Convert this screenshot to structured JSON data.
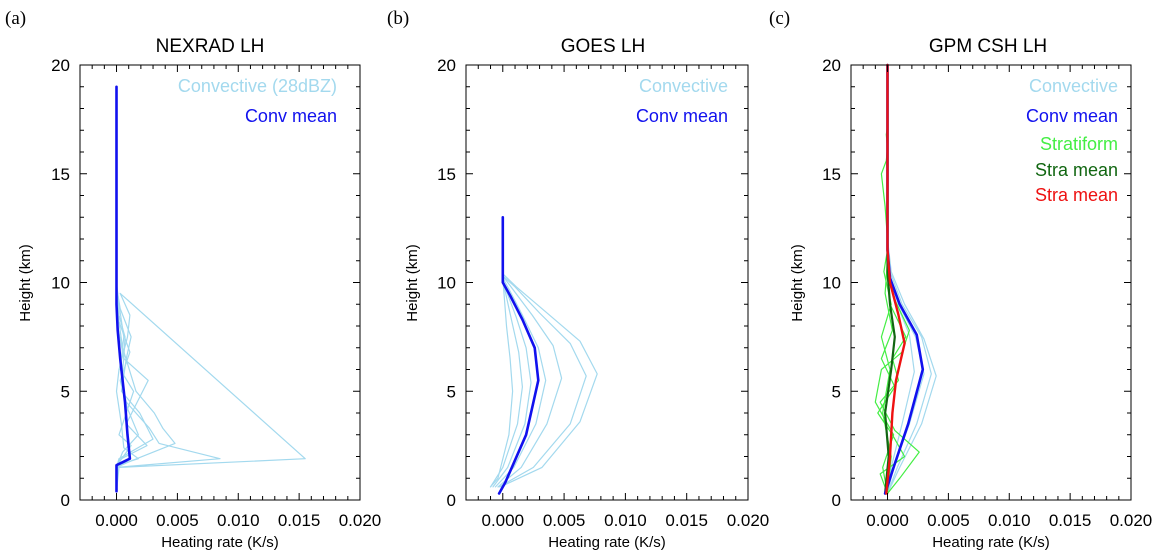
{
  "colors": {
    "convective": "#a3d9ee",
    "conv_mean": "#1111ee",
    "stratiform": "#44ee44",
    "stra_mean_green": "#116611",
    "stra_mean_red": "#ee1111"
  },
  "chart_data": [
    {
      "type": "line",
      "panel_tag": "(a)",
      "title": "NEXRAD LH",
      "xlabel": "Heating rate (K/s)",
      "ylabel": "Height (km)",
      "xlim": [
        -0.003,
        0.02
      ],
      "ylim": [
        0,
        20
      ],
      "xticks": [
        "0.000",
        "0.005",
        "0.010",
        "0.015",
        "0.020"
      ],
      "yticks": [
        "0",
        "5",
        "10",
        "15",
        "20"
      ],
      "legend": [
        {
          "label": "Convective (28dBZ)",
          "color": "#a3d9ee"
        },
        {
          "label": "Conv mean",
          "color": "#1111ee"
        }
      ],
      "series": [
        {
          "color": "#a3d9ee",
          "x": [
            0,
            0.0001,
            0.0018,
            0.0006,
            0.0004,
            0,
            0.0002,
            0.0009,
            0.0011,
            0.0003,
            0.0155,
            0.0002,
            0
          ],
          "y": [
            0.4,
            1.6,
            1.9,
            2.4,
            3.5,
            5.0,
            6.0,
            7.5,
            8.5,
            9.5,
            1.9,
            1.5,
            0.4
          ]
        },
        {
          "color": "#a3d9ee",
          "x": [
            0,
            0.0003,
            0.0012,
            0.0002,
            0.0008,
            0.0014,
            0.0003,
            0.0006,
            0.0002,
            0
          ],
          "y": [
            1.5,
            1.8,
            2.5,
            3.0,
            4.0,
            5.0,
            6.0,
            7.5,
            9.0,
            10.0
          ]
        },
        {
          "color": "#a3d9ee",
          "x": [
            0,
            0.0004,
            0.0025,
            0.0008,
            0.0017,
            0.0026,
            0.0006,
            0.0007,
            0.0002,
            0
          ],
          "y": [
            1.6,
            1.9,
            2.5,
            3.5,
            4.5,
            5.5,
            6.5,
            7.5,
            8.5,
            9.8
          ]
        },
        {
          "color": "#a3d9ee",
          "x": [
            0,
            0.0002,
            0.003,
            0.0019,
            0.0004,
            0.0008,
            0.0012,
            0.0003,
            0
          ],
          "y": [
            1.5,
            1.9,
            2.8,
            4.0,
            5.0,
            6.5,
            7.5,
            8.8,
            9.8
          ]
        },
        {
          "color": "#a3d9ee",
          "x": [
            0,
            0.0085,
            0.0035,
            0.0027,
            0.0008,
            0.0004,
            0.0006,
            0.0001,
            0
          ],
          "y": [
            1.5,
            1.9,
            2.6,
            3.3,
            4.5,
            5.5,
            6.5,
            8.0,
            9.5
          ]
        },
        {
          "color": "#a3d9ee",
          "x": [
            0,
            0.0012,
            0.0048,
            0.0038,
            0.0031,
            0.0016,
            0.0005,
            0
          ],
          "y": [
            1.5,
            1.8,
            2.6,
            3.3,
            4.0,
            5.0,
            7.0,
            9.0
          ]
        },
        {
          "color": "#a3d9ee",
          "x": [
            0,
            0.0005,
            0.0018,
            0.0009,
            0.0003,
            0.0011,
            0.0002,
            0
          ],
          "y": [
            1.5,
            2.2,
            3.0,
            4.2,
            5.5,
            6.8,
            8.2,
            9.5
          ]
        }
      ],
      "mean": {
        "color": "#1111ee",
        "x": [
          0,
          0,
          0.0011,
          0.0009,
          0.0007,
          0.0005,
          0.0003,
          0.0001,
          0,
          0,
          0
        ],
        "y": [
          0.4,
          1.6,
          1.9,
          3.0,
          4.5,
          5.5,
          6.5,
          7.8,
          9.0,
          10.0,
          19.0
        ]
      }
    },
    {
      "type": "line",
      "panel_tag": "(b)",
      "title": "GOES LH",
      "xlabel": "Heating rate (K/s)",
      "ylabel": "Height (km)",
      "xlim": [
        -0.003,
        0.02
      ],
      "ylim": [
        0,
        20
      ],
      "xticks": [
        "0.000",
        "0.005",
        "0.010",
        "0.015",
        "0.020"
      ],
      "yticks": [
        "0",
        "5",
        "10",
        "15",
        "20"
      ],
      "legend": [
        {
          "label": "Convective",
          "color": "#a3d9ee"
        },
        {
          "label": "Conv mean",
          "color": "#1111ee"
        }
      ],
      "series": [
        {
          "color": "#a3d9ee",
          "x": [
            -0.001,
            -0.0004,
            0.0005,
            0.0008,
            0.0006,
            0.0003,
            0.0001,
            0
          ],
          "y": [
            0.6,
            1.0,
            3.0,
            5.0,
            6.5,
            8.0,
            9.5,
            10.2
          ]
        },
        {
          "color": "#a3d9ee",
          "x": [
            -0.001,
            0.0,
            0.0012,
            0.0016,
            0.0013,
            0.0007,
            0.0002,
            0
          ],
          "y": [
            0.6,
            1.5,
            3.5,
            5.2,
            6.8,
            8.3,
            9.6,
            10.2
          ]
        },
        {
          "color": "#a3d9ee",
          "x": [
            -0.0008,
            0.0004,
            0.0018,
            0.0023,
            0.0019,
            0.0011,
            0.0003,
            0
          ],
          "y": [
            0.6,
            1.5,
            3.5,
            5.4,
            7.0,
            8.4,
            9.6,
            10.2
          ]
        },
        {
          "color": "#a3d9ee",
          "x": [
            -0.0006,
            0.0009,
            0.0027,
            0.0035,
            0.0029,
            0.0016,
            0.0005,
            0
          ],
          "y": [
            0.6,
            1.5,
            3.5,
            5.5,
            7.0,
            8.5,
            9.7,
            10.2
          ]
        },
        {
          "color": "#a3d9ee",
          "x": [
            -0.0004,
            0.0015,
            0.0036,
            0.0048,
            0.0041,
            0.0024,
            0.0008,
            0
          ],
          "y": [
            0.6,
            1.5,
            3.5,
            5.6,
            7.1,
            8.5,
            9.7,
            10.3
          ]
        },
        {
          "color": "#a3d9ee",
          "x": [
            -0.0003,
            0.0025,
            0.0055,
            0.0068,
            0.0055,
            0.003,
            0.001,
            0
          ],
          "y": [
            0.6,
            1.5,
            3.5,
            5.7,
            7.2,
            8.6,
            9.8,
            10.3
          ]
        },
        {
          "color": "#a3d9ee",
          "x": [
            -0.0002,
            0.0032,
            0.0063,
            0.0077,
            0.0063,
            0.0034,
            0.0011,
            0
          ],
          "y": [
            0.6,
            1.5,
            3.6,
            5.8,
            7.3,
            8.7,
            9.8,
            10.4
          ]
        }
      ],
      "mean": {
        "color": "#1111ee",
        "x": [
          -0.0003,
          0.0002,
          0.0019,
          0.0029,
          0.0026,
          0.0016,
          0.0006,
          0,
          0,
          0
        ],
        "y": [
          0.3,
          0.8,
          3.0,
          5.5,
          7.0,
          8.3,
          9.4,
          10.0,
          11.0,
          13.0
        ]
      }
    },
    {
      "type": "line",
      "panel_tag": "(c)",
      "title": "GPM CSH LH",
      "xlabel": "Heating rate (K/s)",
      "ylabel": "Height (km)",
      "xlim": [
        -0.003,
        0.02
      ],
      "ylim": [
        0,
        20
      ],
      "xticks": [
        "0.000",
        "0.005",
        "0.010",
        "0.015",
        "0.020"
      ],
      "yticks": [
        "0",
        "5",
        "10",
        "15",
        "20"
      ],
      "legend": [
        {
          "label": "Convective",
          "color": "#a3d9ee"
        },
        {
          "label": "Conv mean",
          "color": "#1111ee"
        },
        {
          "label": "Stratiform",
          "color": "#44ee44"
        },
        {
          "label": "Stra mean",
          "color": "#116611"
        },
        {
          "label": "Stra mean",
          "color": "#ee1111"
        }
      ],
      "series": [
        {
          "color": "#a3d9ee",
          "x": [
            0,
            0.0008,
            0.0024,
            0.0036,
            0.0028,
            0.0012,
            0.0002,
            0
          ],
          "y": [
            0.3,
            1.5,
            3.5,
            5.8,
            7.5,
            9.0,
            10.5,
            12.0
          ]
        },
        {
          "color": "#a3d9ee",
          "x": [
            0,
            0.0005,
            0.0018,
            0.003,
            0.0023,
            0.0009,
            0.0001,
            0
          ],
          "y": [
            0.3,
            1.5,
            3.5,
            5.8,
            7.5,
            9.0,
            10.3,
            12.0
          ]
        },
        {
          "color": "#a3d9ee",
          "x": [
            0,
            0.001,
            0.0028,
            0.004,
            0.003,
            0.0014,
            0.0003,
            0
          ],
          "y": [
            0.3,
            1.5,
            3.5,
            5.7,
            7.4,
            9.0,
            10.5,
            12.0
          ]
        },
        {
          "color": "#a3d9ee",
          "x": [
            0,
            0.0003,
            0.0012,
            0.0022,
            0.0018,
            0.0007,
            0.0001,
            0
          ],
          "y": [
            0.3,
            1.5,
            3.5,
            5.9,
            7.6,
            9.1,
            10.2,
            12.0
          ]
        },
        {
          "color": "#44ee44",
          "x": [
            0,
            -0.0006,
            0.0014,
            0.0004,
            -0.0008,
            0.0006,
            -0.0005,
            0.0004,
            -0.0002,
            0
          ],
          "y": [
            0.3,
            1.2,
            2.0,
            3.0,
            4.0,
            5.2,
            6.5,
            7.8,
            9.5,
            11.0
          ]
        },
        {
          "color": "#44ee44",
          "x": [
            0,
            0.001,
            0.0026,
            0.0006,
            -0.0006,
            0.0009,
            0.0004,
            0.0015,
            0.0002,
            0
          ],
          "y": [
            0.3,
            1.0,
            2.2,
            3.2,
            4.5,
            5.5,
            6.5,
            7.5,
            9.0,
            10.5
          ]
        },
        {
          "color": "#44ee44",
          "x": [
            0,
            -0.0004,
            0.0005,
            -0.001,
            -0.0005,
            0.0012,
            0.0018,
            0.0006,
            0
          ],
          "y": [
            0.3,
            1.5,
            3.0,
            4.5,
            6.0,
            6.8,
            7.8,
            9.2,
            10.5
          ]
        },
        {
          "color": "#44ee44",
          "x": [
            0,
            0.0003,
            -0.0004,
            0.0002,
            -0.0005,
            0.0003,
            -0.0003,
            0
          ],
          "y": [
            0.3,
            2.0,
            4.0,
            6.0,
            7.5,
            9.0,
            10.5,
            11.5
          ]
        },
        {
          "color": "#44ee44",
          "x": [
            0,
            -0.0002,
            -0.0005,
            -0.0001,
            0,
            -0.0001,
            0
          ],
          "y": [
            12.0,
            13.5,
            15.0,
            15.6,
            16.2,
            16.8,
            17.2
          ]
        }
      ],
      "mean": {
        "color": "#1111ee",
        "x": [
          -0.0002,
          0.0005,
          0.0017,
          0.0029,
          0.0024,
          0.001,
          0.0002,
          0,
          0
        ],
        "y": [
          0.3,
          1.5,
          3.5,
          6.0,
          7.6,
          9.0,
          10.2,
          11.5,
          20.0
        ]
      },
      "stra_mean_green": {
        "color": "#116611",
        "x": [
          -0.0002,
          0.0001,
          -0.0002,
          0.0003,
          0.0006,
          0.0002,
          0,
          0
        ],
        "y": [
          0.3,
          2.0,
          4.0,
          6.0,
          7.5,
          9.0,
          10.5,
          20.0
        ]
      },
      "stra_mean_red": {
        "color": "#ee1111",
        "x": [
          -0.0001,
          0.0002,
          0.0004,
          0.0007,
          0.0014,
          0.0009,
          0.0002,
          0,
          0
        ],
        "y": [
          0.3,
          2.0,
          4.0,
          5.5,
          7.2,
          8.5,
          10.0,
          11.5,
          20.0
        ]
      }
    }
  ]
}
